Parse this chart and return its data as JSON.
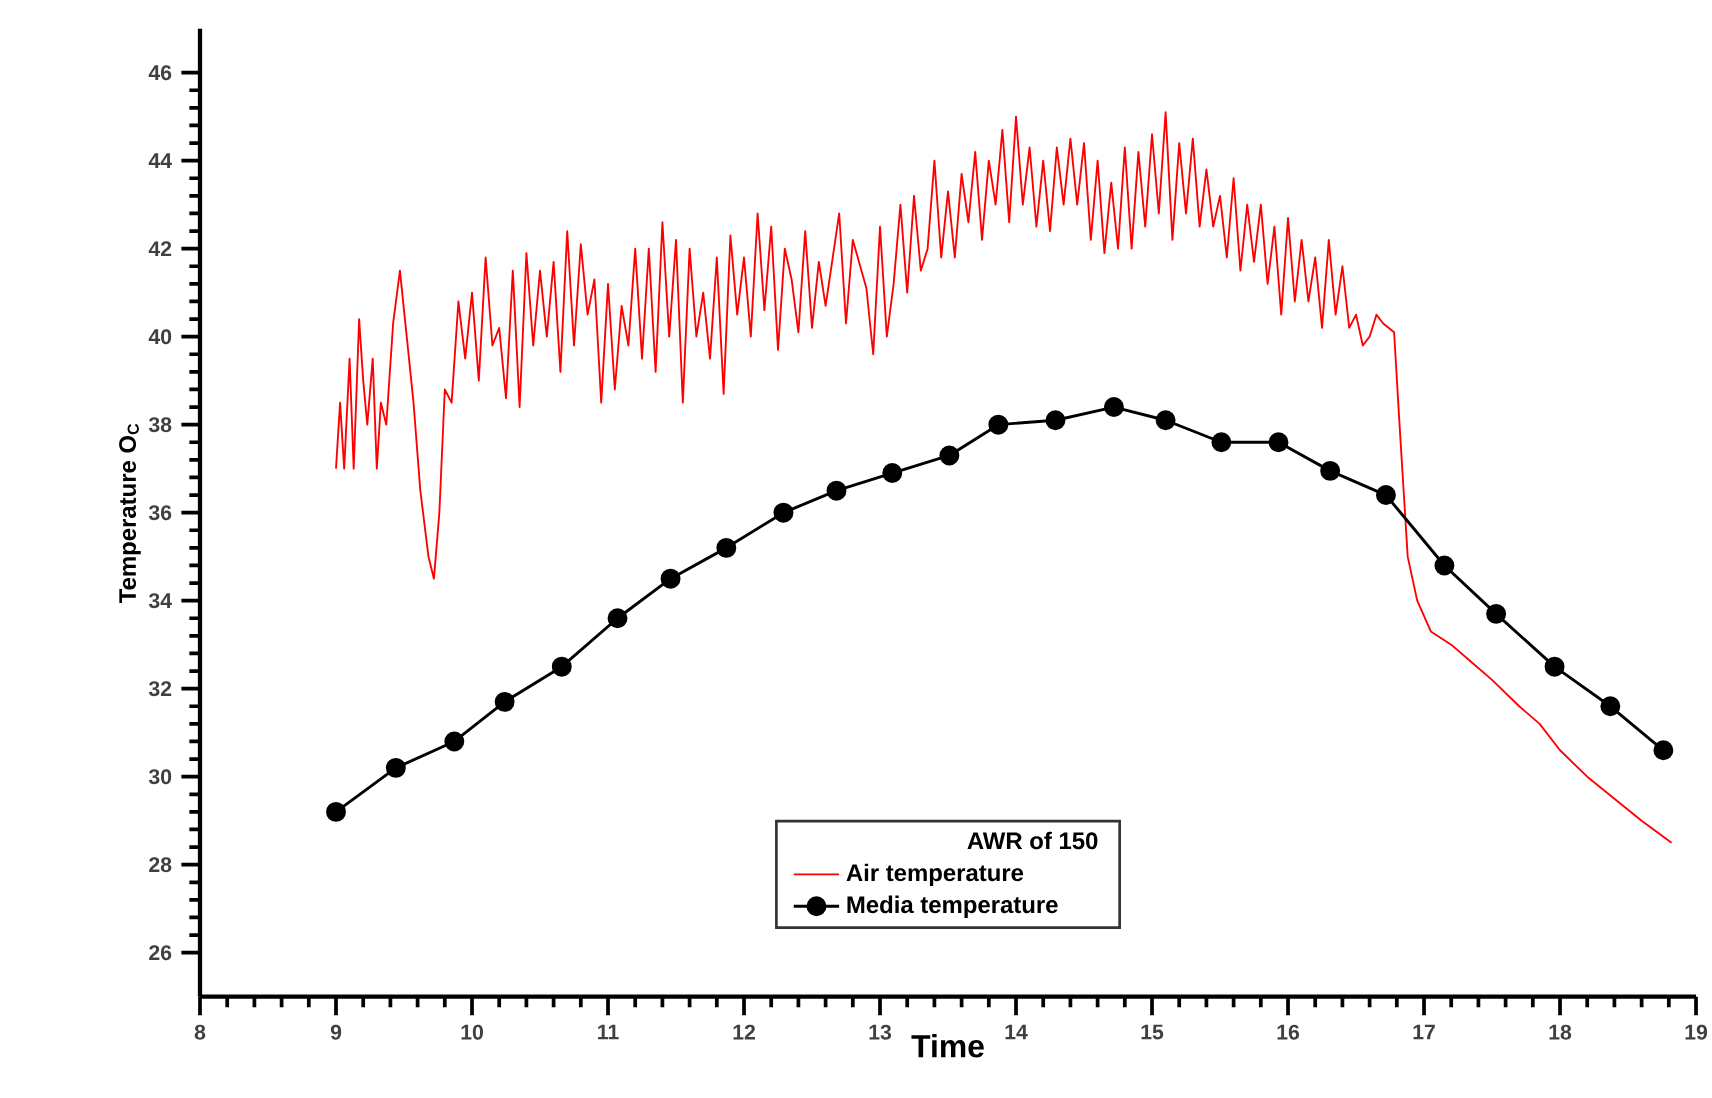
{
  "chart_data": {
    "type": "line",
    "xlabel": "Time",
    "ylabel": "Temperature O$_{C}$",
    "legend_title": "AWR of 150",
    "legend": "bottom",
    "xlim": [
      8,
      19
    ],
    "xticks": [
      8,
      9,
      10,
      11,
      12,
      13,
      14,
      15,
      16,
      17,
      18,
      19
    ],
    "ylim": [
      25,
      47
    ],
    "yticks": [
      26,
      28,
      30,
      32,
      34,
      36,
      38,
      40,
      42,
      44,
      46
    ],
    "line_style": "solid",
    "series": [
      {
        "name": "Air temperature",
        "color": "#ff0000",
        "marker": "none",
        "x": [
          9.0,
          9.03,
          9.06,
          9.1,
          9.13,
          9.17,
          9.2,
          9.23,
          9.27,
          9.3,
          9.33,
          9.37,
          9.42,
          9.47,
          9.52,
          9.57,
          9.62,
          9.68,
          9.72,
          9.76,
          9.8,
          9.85,
          9.9,
          9.95,
          10.0,
          10.05,
          10.1,
          10.15,
          10.2,
          10.25,
          10.3,
          10.35,
          10.4,
          10.45,
          10.5,
          10.55,
          10.6,
          10.65,
          10.7,
          10.75,
          10.8,
          10.85,
          10.9,
          10.95,
          11.0,
          11.05,
          11.1,
          11.15,
          11.2,
          11.25,
          11.3,
          11.35,
          11.4,
          11.45,
          11.5,
          11.55,
          11.6,
          11.65,
          11.7,
          11.75,
          11.8,
          11.85,
          11.9,
          11.95,
          12.0,
          12.05,
          12.1,
          12.15,
          12.2,
          12.25,
          12.3,
          12.35,
          12.4,
          12.45,
          12.5,
          12.55,
          12.6,
          12.7,
          12.75,
          12.8,
          12.9,
          12.95,
          13.0,
          13.05,
          13.1,
          13.15,
          13.2,
          13.25,
          13.3,
          13.35,
          13.4,
          13.45,
          13.5,
          13.55,
          13.6,
          13.65,
          13.7,
          13.75,
          13.8,
          13.85,
          13.9,
          13.95,
          14.0,
          14.05,
          14.1,
          14.15,
          14.2,
          14.25,
          14.3,
          14.35,
          14.4,
          14.45,
          14.5,
          14.55,
          14.6,
          14.65,
          14.7,
          14.75,
          14.8,
          14.85,
          14.9,
          14.95,
          15.0,
          15.05,
          15.1,
          15.15,
          15.2,
          15.25,
          15.3,
          15.35,
          15.4,
          15.45,
          15.5,
          15.55,
          15.6,
          15.65,
          15.7,
          15.75,
          15.8,
          15.85,
          15.9,
          15.95,
          16.0,
          16.05,
          16.1,
          16.15,
          16.2,
          16.25,
          16.3,
          16.35,
          16.4,
          16.45,
          16.5,
          16.55,
          16.6,
          16.65,
          16.7,
          16.78,
          16.82,
          16.88,
          16.95,
          17.05,
          17.2,
          17.35,
          17.5,
          17.7,
          17.85,
          18.0,
          18.2,
          18.4,
          18.6,
          18.82
        ],
        "values": [
          37.0,
          38.5,
          37.0,
          39.5,
          37.0,
          40.4,
          39.0,
          38.0,
          39.5,
          37.0,
          38.5,
          38.0,
          40.3,
          41.5,
          40.0,
          38.5,
          36.5,
          35.0,
          34.5,
          36.0,
          38.8,
          38.5,
          40.8,
          39.5,
          41.0,
          39.0,
          41.8,
          39.8,
          40.2,
          38.6,
          41.5,
          38.4,
          41.9,
          39.8,
          41.5,
          40.0,
          41.7,
          39.2,
          42.4,
          39.8,
          42.1,
          40.5,
          41.3,
          38.5,
          41.2,
          38.8,
          40.7,
          39.8,
          42.0,
          39.5,
          42.0,
          39.2,
          42.6,
          40.0,
          42.2,
          38.5,
          42.0,
          40.0,
          41.0,
          39.5,
          41.8,
          38.7,
          42.3,
          40.5,
          41.8,
          40.0,
          42.8,
          40.6,
          42.5,
          39.7,
          42.0,
          41.3,
          40.1,
          42.4,
          40.2,
          41.7,
          40.7,
          42.8,
          40.3,
          42.2,
          41.1,
          39.6,
          42.5,
          40.0,
          41.2,
          43.0,
          41.0,
          43.2,
          41.5,
          42.0,
          44.0,
          41.8,
          43.3,
          41.8,
          43.7,
          42.6,
          44.2,
          42.2,
          44.0,
          43.0,
          44.7,
          42.6,
          45.0,
          43.0,
          44.3,
          42.5,
          44.0,
          42.4,
          44.3,
          43.0,
          44.5,
          43.0,
          44.4,
          42.2,
          44.0,
          41.9,
          43.5,
          42.0,
          44.3,
          42.0,
          44.2,
          42.5,
          44.6,
          42.8,
          45.1,
          42.2,
          44.4,
          42.8,
          44.5,
          42.5,
          43.8,
          42.5,
          43.2,
          41.8,
          43.6,
          41.5,
          43.0,
          41.7,
          43.0,
          41.2,
          42.5,
          40.5,
          42.7,
          40.8,
          42.2,
          40.8,
          41.8,
          40.2,
          42.2,
          40.5,
          41.6,
          40.2,
          40.5,
          39.8,
          40.0,
          40.5,
          40.3,
          40.1,
          38.0,
          35.0,
          34.0,
          33.3,
          33.0,
          32.6,
          32.2,
          31.6,
          31.2,
          30.6,
          30.0,
          29.5,
          29.0,
          28.5
        ]
      },
      {
        "name": "Media temperature",
        "color": "#000000",
        "marker": "circle",
        "x": [
          9.0,
          9.44,
          9.87,
          10.24,
          10.66,
          11.07,
          11.46,
          11.87,
          12.29,
          12.68,
          13.09,
          13.51,
          13.87,
          14.29,
          14.72,
          15.1,
          15.51,
          15.93,
          16.31,
          16.72,
          17.15,
          17.53,
          17.96,
          18.37,
          18.76
        ],
        "values": [
          29.2,
          30.2,
          30.8,
          31.7,
          32.5,
          33.6,
          34.5,
          35.2,
          36.0,
          36.5,
          36.9,
          37.3,
          38.0,
          38.1,
          38.4,
          38.1,
          37.6,
          37.6,
          36.95,
          36.4,
          34.8,
          33.7,
          32.5,
          31.6,
          30.6
        ]
      }
    ]
  }
}
